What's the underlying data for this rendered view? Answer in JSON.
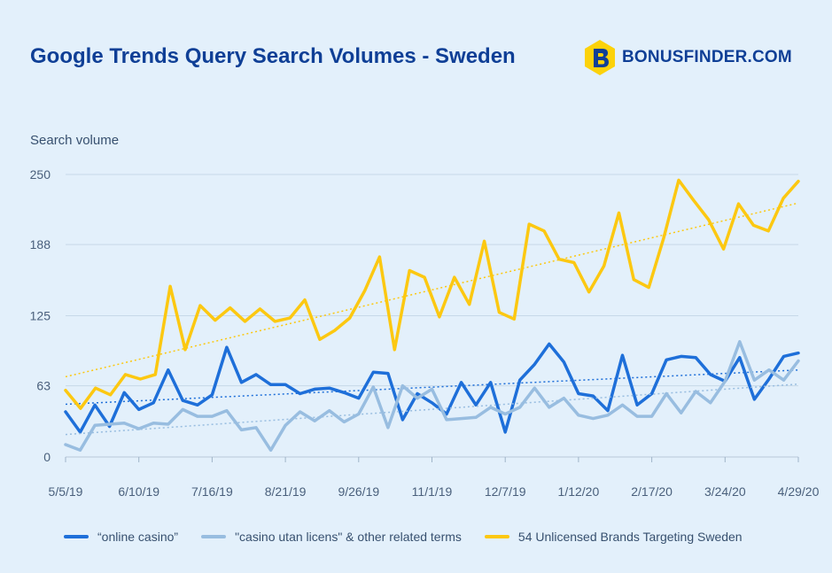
{
  "header": {
    "title": "Google Trends Query Search Volumes - Sweden",
    "logo_text": "BONUSFINDER.COM",
    "logo_colors": {
      "hex": "#fcd20a",
      "letter": "#0f3f96"
    }
  },
  "chart_data": {
    "type": "line",
    "title": "Google Trends Query Search Volumes - Sweden",
    "ylabel": "Search volume",
    "xlabel": "",
    "ylim": [
      0,
      250
    ],
    "yticks": [
      "0",
      "63",
      "125",
      "188",
      "250"
    ],
    "ytick_values": [
      0,
      63,
      125,
      188,
      250
    ],
    "xticks": [
      "5/5/19",
      "6/10/19",
      "7/16/19",
      "8/21/19",
      "9/26/19",
      "11/1/19",
      "12/7/19",
      "1/12/20",
      "2/17/20",
      "3/24/20",
      "4/29/20"
    ],
    "x_points": 53,
    "grid": "horizontal",
    "legend_position": "bottom",
    "trendlines": "dotted linear trend per series",
    "series": [
      {
        "name": "“online casino”",
        "color": "#1e6fd9",
        "values": [
          40,
          22,
          46,
          27,
          57,
          42,
          48,
          77,
          50,
          46,
          55,
          97,
          66,
          73,
          64,
          64,
          56,
          60,
          61,
          57,
          52,
          75,
          74,
          33,
          56,
          48,
          38,
          66,
          46,
          66,
          22,
          68,
          82,
          100,
          84,
          56,
          54,
          41,
          90,
          46,
          56,
          86,
          89,
          88,
          73,
          67,
          88,
          51,
          69,
          89,
          92
        ]
      },
      {
        "name": "\"casino utan licens\" & other related terms",
        "color": "#98bde0",
        "values": [
          11,
          6,
          28,
          29,
          30,
          25,
          30,
          29,
          42,
          36,
          36,
          41,
          24,
          26,
          6,
          28,
          40,
          32,
          41,
          31,
          38,
          62,
          26,
          63,
          52,
          60,
          33,
          34,
          35,
          44,
          38,
          44,
          61,
          44,
          52,
          37,
          34,
          37,
          46,
          36,
          36,
          56,
          39,
          58,
          48,
          67,
          102,
          68,
          77,
          68,
          85
        ]
      },
      {
        "name": "54 Unlicensed Brands Targeting Sweden",
        "color": "#fcc811",
        "values": [
          59,
          43,
          61,
          55,
          73,
          69,
          73,
          151,
          95,
          134,
          121,
          132,
          120,
          131,
          120,
          123,
          139,
          104,
          112,
          123,
          147,
          177,
          95,
          165,
          159,
          124,
          159,
          135,
          191,
          128,
          122,
          206,
          200,
          175,
          172,
          146,
          169,
          216,
          157,
          150,
          194,
          245,
          227,
          210,
          184,
          224,
          205,
          200,
          229,
          244
        ]
      }
    ]
  },
  "legend": {
    "items": [
      {
        "label": "“online casino”",
        "color": "#1e6fd9"
      },
      {
        "label": "\"casino utan licens\" & other related terms",
        "color": "#98bde0"
      },
      {
        "label": "54 Unlicensed Brands Targeting Sweden",
        "color": "#fcc811"
      }
    ]
  }
}
